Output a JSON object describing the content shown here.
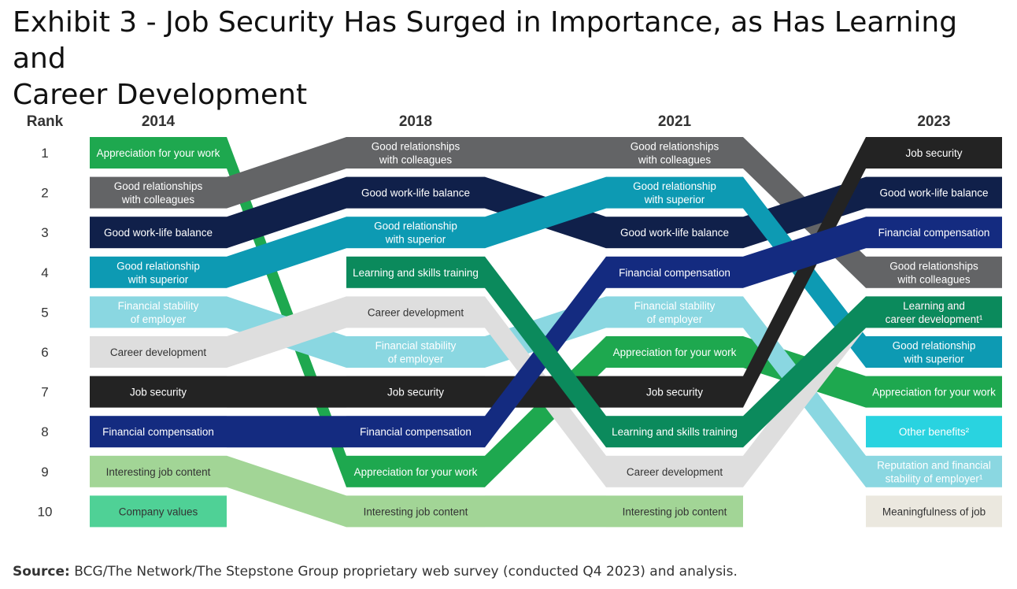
{
  "title": [
    "Exhibit 3 - Job Security Has Surged in Importance, as Has Learning and",
    "Career Development"
  ],
  "source": {
    "prefix": "Source:",
    "text": " BCG/The Network/The Stepstone Group proprietary web survey (conducted Q4 2023) and analysis."
  },
  "chart_data": {
    "type": "bump",
    "rank_label": "Rank",
    "ranks": [
      1,
      2,
      3,
      4,
      5,
      6,
      7,
      8,
      9,
      10
    ],
    "years": [
      "2014",
      "2018",
      "2021",
      "2023"
    ],
    "series": [
      {
        "key": "appreciation",
        "color": "#1ea84f",
        "text_color": "#ffffff",
        "ranks": [
          1,
          9,
          6,
          7
        ],
        "labels": [
          [
            "Appreciation for your work"
          ],
          [
            "Appreciation for your work"
          ],
          [
            "Appreciation for your work"
          ],
          [
            "Appreciation for your work"
          ]
        ]
      },
      {
        "key": "relationships",
        "color": "#636466",
        "text_color": "#ffffff",
        "ranks": [
          2,
          1,
          1,
          4
        ],
        "labels": [
          [
            "Good relationships",
            "with colleagues"
          ],
          [
            "Good relationships",
            "with colleagues"
          ],
          [
            "Good relationships",
            "with colleagues"
          ],
          [
            "Good relationships",
            "with colleagues"
          ]
        ]
      },
      {
        "key": "worklife",
        "color": "#10204a",
        "text_color": "#ffffff",
        "ranks": [
          3,
          2,
          3,
          2
        ],
        "labels": [
          [
            "Good work-life balance"
          ],
          [
            "Good work-life balance"
          ],
          [
            "Good work-life balance"
          ],
          [
            "Good work-life balance"
          ]
        ]
      },
      {
        "key": "superior",
        "color": "#0d9ab3",
        "text_color": "#ffffff",
        "ranks": [
          4,
          3,
          2,
          6
        ],
        "labels": [
          [
            "Good relationship",
            "with superior"
          ],
          [
            "Good relationship",
            "with superior"
          ],
          [
            "Good relationship",
            "with superior"
          ],
          [
            "Good relationship",
            "with superior"
          ]
        ]
      },
      {
        "key": "stability",
        "color": "#8ad7e1",
        "text_color": "#ffffff",
        "ranks": [
          5,
          6,
          5,
          9
        ],
        "labels": [
          [
            "Financial stability",
            "of employer"
          ],
          [
            "Financial stability",
            "of employer"
          ],
          [
            "Financial stability",
            "of employer"
          ],
          [
            "Reputation and financial",
            "stability of employer¹"
          ]
        ]
      },
      {
        "key": "career",
        "color": "#dedede",
        "text_color": "#333333",
        "ranks": [
          6,
          5,
          9,
          5
        ],
        "labels": [
          [
            "Career development"
          ],
          [
            "Career development"
          ],
          [
            "Career development"
          ],
          [
            "Learning and",
            "career development¹"
          ]
        ]
      },
      {
        "key": "jobsecurity",
        "color": "#232323",
        "text_color": "#ffffff",
        "ranks": [
          7,
          7,
          7,
          1
        ],
        "labels": [
          [
            "Job security"
          ],
          [
            "Job security"
          ],
          [
            "Job security"
          ],
          [
            "Job security"
          ]
        ]
      },
      {
        "key": "compensation",
        "color": "#142b80",
        "text_color": "#ffffff",
        "ranks": [
          8,
          8,
          4,
          3
        ],
        "labels": [
          [
            "Financial compensation"
          ],
          [
            "Financial compensation"
          ],
          [
            "Financial compensation"
          ],
          [
            "Financial compensation"
          ]
        ]
      },
      {
        "key": "jobcontent",
        "color": "#a2d596",
        "text_color": "#333333",
        "ranks": [
          9,
          10,
          10,
          null
        ],
        "labels": [
          [
            "Interesting job content"
          ],
          [
            "Interesting job content"
          ],
          [
            "Interesting job content"
          ]
        ]
      },
      {
        "key": "learning",
        "color": "#0b8a5c",
        "text_color": "#ffffff",
        "ranks": [
          null,
          4,
          8,
          5
        ],
        "labels": [
          null,
          [
            "Learning and skills training"
          ],
          [
            "Learning and skills training"
          ],
          [
            "Learning and",
            "career development¹"
          ]
        ]
      },
      {
        "key": "values",
        "color": "#4fd196",
        "text_color": "#333333",
        "ranks": [
          10,
          null,
          null,
          null
        ],
        "labels": [
          [
            "Company values"
          ]
        ]
      },
      {
        "key": "otherbenefits",
        "color": "#29d3e0",
        "text_color": "#ffffff",
        "ranks": [
          null,
          null,
          null,
          8
        ],
        "labels": [
          null,
          null,
          null,
          [
            "Other benefits²"
          ]
        ]
      },
      {
        "key": "meaningful",
        "color": "#ebe8df",
        "text_color": "#333333",
        "ranks": [
          null,
          null,
          null,
          10
        ],
        "labels": [
          null,
          null,
          null,
          [
            "Meaningfulness of job"
          ]
        ]
      }
    ]
  }
}
